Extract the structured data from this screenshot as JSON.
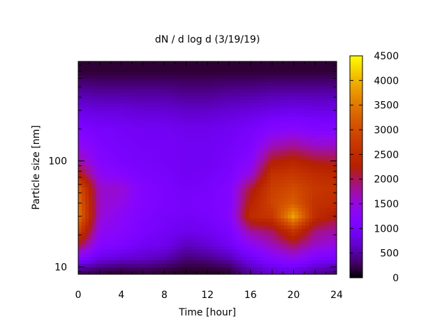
{
  "chart_data": {
    "type": "heatmap",
    "title": "dN / d log d (3/19/19)",
    "xlabel": "Time [hour]",
    "ylabel": "Particle size [nm]",
    "xlim": [
      0,
      24
    ],
    "x_ticks": [
      "0",
      "4",
      "8",
      "12",
      "16",
      "20",
      "24"
    ],
    "x_tick_values": [
      0,
      4,
      8,
      12,
      16,
      20,
      24
    ],
    "ylim_nm": [
      8.5,
      870
    ],
    "y_scale": "log",
    "y_ticks": [
      "10",
      "100"
    ],
    "y_tick_values": [
      10,
      100
    ],
    "colorbar": {
      "range": [
        0,
        4500
      ],
      "ticks": [
        "0",
        "500",
        "1000",
        "1500",
        "2000",
        "2500",
        "3000",
        "3500",
        "4000",
        "4500"
      ],
      "tick_values": [
        0,
        500,
        1000,
        1500,
        2000,
        2500,
        3000,
        3500,
        4000,
        4500
      ],
      "palette": "gnuplot black-purple-red-orange-yellow"
    },
    "grid": {
      "time_hours": [
        0,
        2,
        4,
        6,
        8,
        10,
        12,
        14,
        16,
        18,
        20,
        22,
        24
      ],
      "size_nm": [
        9,
        12,
        16,
        22,
        30,
        40,
        55,
        75,
        100,
        140,
        200,
        300,
        450,
        700
      ],
      "values": [
        [
          300,
          200,
          150,
          200,
          150,
          100,
          100,
          150,
          500,
          700,
          750,
          500,
          350
        ],
        [
          1200,
          800,
          700,
          650,
          550,
          350,
          400,
          550,
          900,
          1200,
          1400,
          1100,
          1000
        ],
        [
          2100,
          1200,
          1100,
          900,
          850,
          600,
          700,
          900,
          1300,
          1650,
          2000,
          1600,
          1450
        ],
        [
          2900,
          1400,
          1250,
          1050,
          950,
          850,
          900,
          1050,
          1800,
          2000,
          2700,
          1900,
          1750
        ],
        [
          3500,
          1550,
          1300,
          1100,
          1000,
          950,
          1000,
          1150,
          2500,
          2700,
          3900,
          2500,
          2200
        ],
        [
          3400,
          1600,
          1450,
          1150,
          1050,
          1000,
          1050,
          1150,
          2300,
          2900,
          3200,
          2600,
          2500
        ],
        [
          3200,
          1600,
          1550,
          1150,
          1050,
          950,
          1000,
          1150,
          2100,
          2800,
          3000,
          2700,
          2600
        ],
        [
          2300,
          1350,
          1200,
          1050,
          1000,
          900,
          950,
          1050,
          1500,
          2600,
          2700,
          2500,
          2400
        ],
        [
          1750,
          1200,
          1050,
          1000,
          950,
          900,
          900,
          1000,
          1250,
          2200,
          2350,
          2150,
          2100
        ],
        [
          1400,
          1100,
          1000,
          950,
          950,
          900,
          900,
          950,
          1100,
          1650,
          1800,
          1600,
          1600
        ],
        [
          1100,
          1000,
          950,
          900,
          900,
          850,
          850,
          900,
          1000,
          1200,
          1250,
          1150,
          1150
        ],
        [
          800,
          750,
          750,
          700,
          700,
          650,
          650,
          700,
          750,
          800,
          850,
          800,
          800
        ],
        [
          500,
          450,
          450,
          450,
          450,
          400,
          400,
          450,
          450,
          500,
          500,
          500,
          500
        ],
        [
          150,
          150,
          150,
          150,
          150,
          150,
          150,
          150,
          150,
          150,
          150,
          150,
          150
        ]
      ]
    }
  }
}
